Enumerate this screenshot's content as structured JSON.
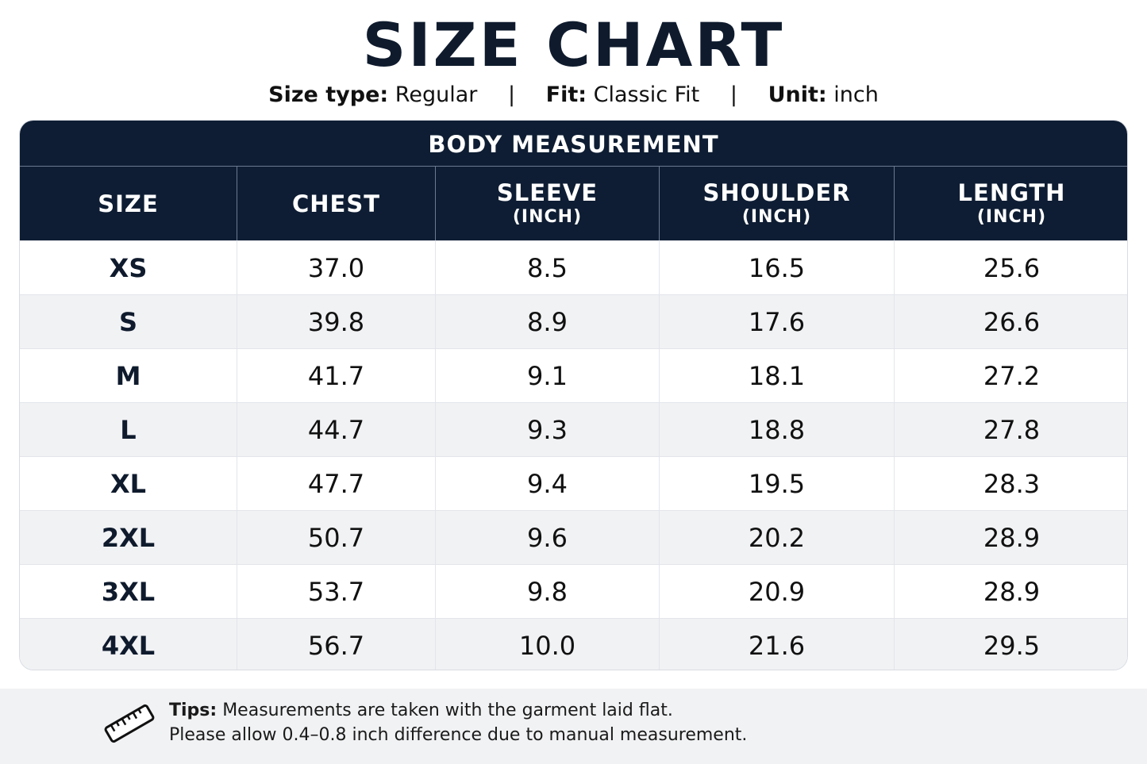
{
  "title": "SIZE CHART",
  "meta": {
    "size_type_label": "Size type:",
    "size_type_value": "Regular",
    "fit_label": "Fit:",
    "fit_value": "Classic Fit",
    "unit_label": "Unit:",
    "unit_value": "inch",
    "separator": "|"
  },
  "table": {
    "group_title": "BODY MEASUREMENT",
    "columns": [
      {
        "label": "SIZE",
        "sub": ""
      },
      {
        "label": "CHEST",
        "sub": ""
      },
      {
        "label": "SLEEVE",
        "sub": "(INCH)"
      },
      {
        "label": "SHOULDER",
        "sub": "(INCH)"
      },
      {
        "label": "LENGTH",
        "sub": "(INCH)"
      }
    ],
    "rows": [
      [
        "XS",
        "37.0",
        "8.5",
        "16.5",
        "25.6"
      ],
      [
        "S",
        "39.8",
        "8.9",
        "17.6",
        "26.6"
      ],
      [
        "M",
        "41.7",
        "9.1",
        "18.1",
        "27.2"
      ],
      [
        "L",
        "44.7",
        "9.3",
        "18.8",
        "27.8"
      ],
      [
        "XL",
        "47.7",
        "9.4",
        "19.5",
        "28.3"
      ],
      [
        "2XL",
        "50.7",
        "9.6",
        "20.2",
        "28.9"
      ],
      [
        "3XL",
        "53.7",
        "9.8",
        "20.9",
        "28.9"
      ],
      [
        "4XL",
        "56.7",
        "10.0",
        "21.6",
        "29.5"
      ]
    ]
  },
  "tips": {
    "icon": "ruler-icon",
    "label": "Tips:",
    "line1": "Measurements are taken with the garment laid flat.",
    "line2": "Please allow 0.4–0.8 inch difference due to manual measurement."
  },
  "colors": {
    "header_bg": "#0e1d33",
    "title_text": "#0f1b2d",
    "alt_row": "#f1f2f4"
  }
}
